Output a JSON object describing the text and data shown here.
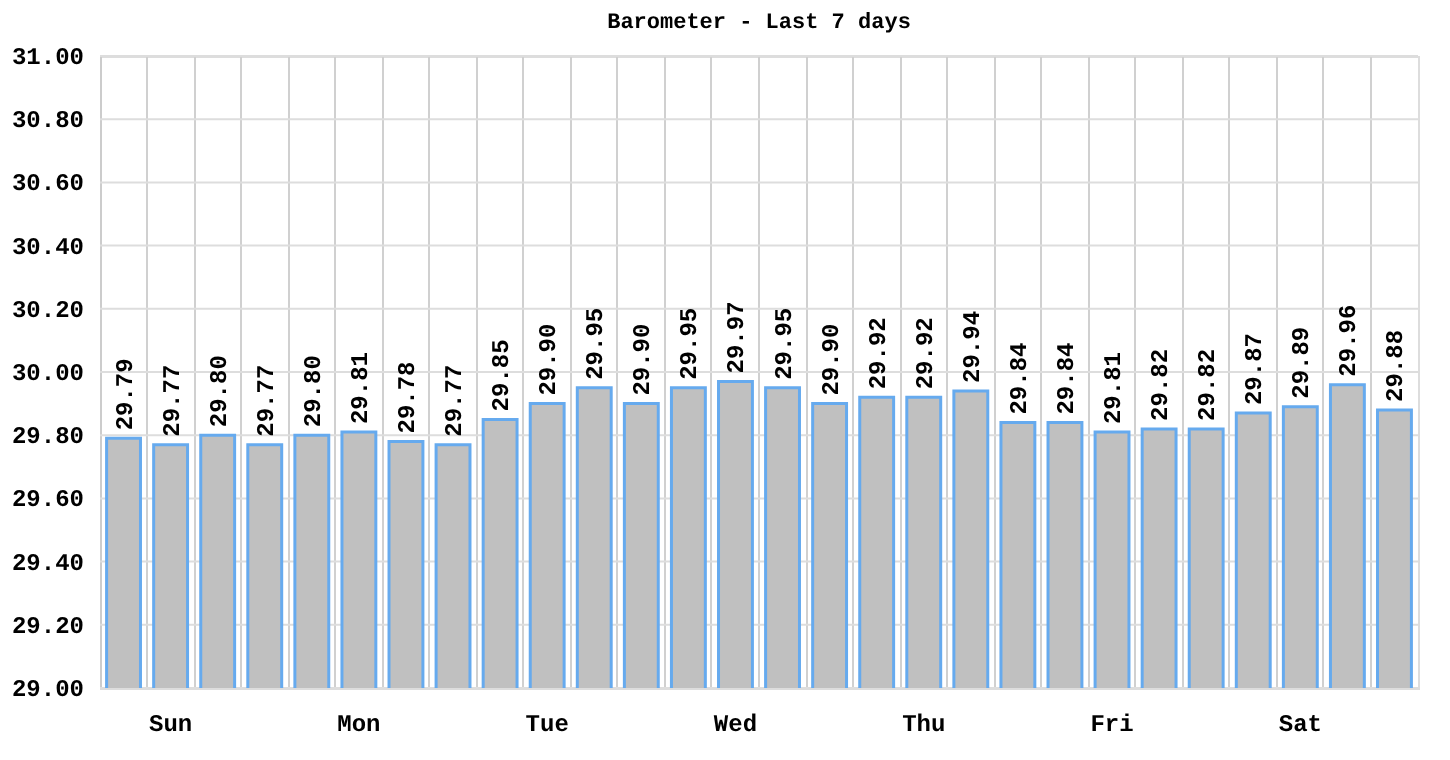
{
  "chart_data": {
    "type": "bar",
    "title": "Barometer - Last 7 days",
    "categories": [
      null,
      "Sun",
      null,
      null,
      null,
      "Mon",
      null,
      null,
      null,
      "Tue",
      null,
      null,
      null,
      "Wed",
      null,
      null,
      null,
      "Thu",
      null,
      null,
      null,
      "Fri",
      null,
      null,
      null,
      "Sat",
      null,
      null
    ],
    "values": [
      29.79,
      29.77,
      29.8,
      29.77,
      29.8,
      29.81,
      29.78,
      29.77,
      29.85,
      29.9,
      29.95,
      29.9,
      29.95,
      29.97,
      29.95,
      29.9,
      29.92,
      29.92,
      29.94,
      29.84,
      29.84,
      29.81,
      29.82,
      29.82,
      29.87,
      29.89,
      29.96,
      29.88
    ],
    "value_labels": [
      "29.79",
      "29.77",
      "29.80",
      "29.77",
      "29.80",
      "29.81",
      "29.78",
      "29.77",
      "29.85",
      "29.90",
      "29.95",
      "29.90",
      "29.95",
      "29.97",
      "29.95",
      "29.90",
      "29.92",
      "29.92",
      "29.94",
      "29.84",
      "29.84",
      "29.81",
      "29.82",
      "29.82",
      "29.87",
      "29.89",
      "29.96",
      "29.88"
    ],
    "color": "#c0c0c0",
    "ylim": [
      29.0,
      31.0
    ],
    "yticks": [
      {
        "value": 29.0,
        "label": "29.00"
      },
      {
        "value": 29.2,
        "label": "29.20"
      },
      {
        "value": 29.4,
        "label": "29.40"
      },
      {
        "value": 29.6,
        "label": "29.60"
      },
      {
        "value": 29.8,
        "label": "29.80"
      },
      {
        "value": 30.0,
        "label": "30.00"
      },
      {
        "value": 30.2,
        "label": "30.20"
      },
      {
        "value": 30.4,
        "label": "30.40"
      },
      {
        "value": 30.6,
        "label": "30.60"
      },
      {
        "value": 30.8,
        "label": "30.80"
      },
      {
        "value": 31.0,
        "label": "31.00"
      }
    ],
    "grid": true
  }
}
